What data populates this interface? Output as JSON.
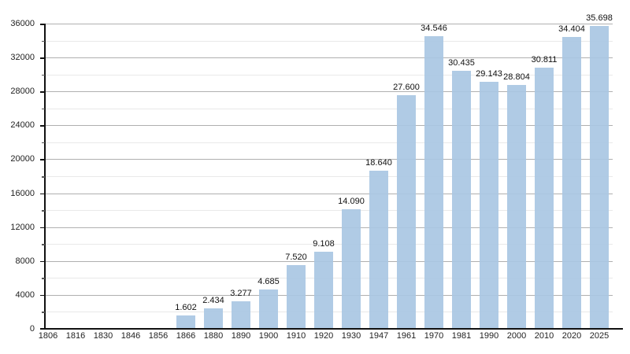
{
  "chart": {
    "colors": {
      "background": "#ffffff",
      "bar": "#a9c7e3",
      "major_grid": "#b0b0b0",
      "minor_grid": "#e9e9e9",
      "axis": "#111111",
      "text": "#222222"
    }
  },
  "chart_data": {
    "type": "bar",
    "title": "",
    "xlabel": "",
    "ylabel": "",
    "categories": [
      "1806",
      "1816",
      "1830",
      "1846",
      "1856",
      "1866",
      "1880",
      "1890",
      "1900",
      "1910",
      "1920",
      "1930",
      "1947",
      "1961",
      "1970",
      "1981",
      "1990",
      "2000",
      "2010",
      "2020",
      "2025"
    ],
    "values": [
      null,
      null,
      null,
      null,
      null,
      1602,
      2434,
      3277,
      4685,
      7520,
      9108,
      14090,
      18640,
      27600,
      34546,
      30435,
      29143,
      28804,
      30811,
      34404,
      35698
    ],
    "value_labels": [
      "",
      "",
      "",
      "",
      "",
      "1.602",
      "2.434",
      "3.277",
      "4.685",
      "7.520",
      "9.108",
      "14.090",
      "18.640",
      "27.600",
      "34.546",
      "30.435",
      "29.143",
      "28.804",
      "30.811",
      "34.404",
      "35.698"
    ],
    "ylim": [
      0,
      36000
    ],
    "y_major_step": 4000,
    "y_minor_step": 2000,
    "y_tick_labels": [
      "0",
      "4000",
      "8000",
      "12000",
      "16000",
      "20000",
      "24000",
      "28000",
      "32000",
      "36000"
    ],
    "grid": true,
    "legend": false
  }
}
